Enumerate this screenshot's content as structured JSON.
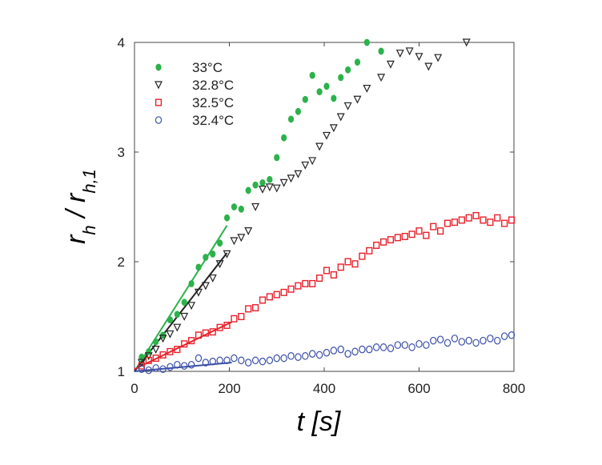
{
  "chart_data": {
    "type": "scatter",
    "xlabel": "t [s]",
    "ylabel": "r_h / r_h,1",
    "xlim": [
      0,
      800
    ],
    "ylim": [
      1,
      4
    ],
    "xticks": [
      0,
      200,
      400,
      600,
      800
    ],
    "yticks": [
      1,
      2,
      3,
      4
    ],
    "xtick_labels": [
      "0",
      "200",
      "400",
      "600",
      "800"
    ],
    "ytick_labels": [
      "1",
      "2",
      "3",
      "4"
    ],
    "legend_position": "top-left",
    "series": [
      {
        "name": "33°C",
        "marker": "filled-circle",
        "color": "#2bb24a",
        "x": [
          15,
          30,
          45,
          60,
          75,
          90,
          105,
          120,
          135,
          150,
          165,
          180,
          195,
          210,
          225,
          240,
          255,
          270,
          285,
          300,
          315,
          330,
          345,
          360,
          375,
          390,
          405,
          420,
          435,
          450,
          470,
          490,
          520
        ],
        "y": [
          1.13,
          1.18,
          1.27,
          1.33,
          1.47,
          1.52,
          1.63,
          1.8,
          1.95,
          2.04,
          2.07,
          2.17,
          2.4,
          2.5,
          2.48,
          2.65,
          2.7,
          2.72,
          2.75,
          2.95,
          3.13,
          3.3,
          3.37,
          3.48,
          3.7,
          3.55,
          3.6,
          3.49,
          3.68,
          3.75,
          3.82,
          4.0,
          3.92
        ],
        "fit_line": {
          "x": [
            0,
            195
          ],
          "y": [
            1.0,
            2.33
          ]
        }
      },
      {
        "name": "32.8°C",
        "marker": "open-triangle-down",
        "color": "#222222",
        "x": [
          15,
          30,
          45,
          60,
          75,
          90,
          105,
          120,
          135,
          150,
          165,
          180,
          195,
          210,
          225,
          240,
          255,
          270,
          285,
          300,
          315,
          330,
          345,
          360,
          375,
          390,
          405,
          420,
          435,
          450,
          470,
          490,
          520,
          540,
          560,
          580,
          600,
          620,
          640,
          700
        ],
        "y": [
          1.08,
          1.14,
          1.2,
          1.3,
          1.34,
          1.4,
          1.5,
          1.6,
          1.72,
          1.78,
          1.85,
          1.98,
          2.07,
          2.19,
          2.22,
          2.28,
          2.5,
          2.66,
          2.68,
          2.67,
          2.72,
          2.76,
          2.8,
          2.88,
          2.92,
          3.05,
          3.15,
          3.22,
          3.32,
          3.42,
          3.48,
          3.58,
          3.68,
          3.8,
          3.9,
          3.92,
          3.87,
          3.78,
          3.86,
          4.0
        ],
        "fit_line": {
          "x": [
            0,
            195
          ],
          "y": [
            1.0,
            2.08
          ]
        }
      },
      {
        "name": "32.5°C",
        "marker": "open-square",
        "color": "#e8202a",
        "x": [
          15,
          30,
          45,
          60,
          75,
          90,
          105,
          120,
          135,
          150,
          165,
          180,
          195,
          210,
          225,
          240,
          255,
          270,
          285,
          300,
          315,
          330,
          345,
          360,
          375,
          390,
          405,
          420,
          435,
          450,
          465,
          480,
          495,
          510,
          525,
          540,
          555,
          570,
          585,
          600,
          615,
          630,
          645,
          660,
          675,
          690,
          705,
          720,
          735,
          750,
          765,
          780,
          795
        ],
        "y": [
          1.05,
          1.1,
          1.12,
          1.15,
          1.18,
          1.2,
          1.25,
          1.28,
          1.33,
          1.35,
          1.36,
          1.4,
          1.42,
          1.48,
          1.5,
          1.57,
          1.58,
          1.65,
          1.68,
          1.7,
          1.72,
          1.75,
          1.78,
          1.8,
          1.8,
          1.85,
          1.92,
          1.88,
          1.95,
          2.0,
          1.98,
          2.05,
          2.1,
          2.15,
          2.18,
          2.2,
          2.22,
          2.23,
          2.25,
          2.28,
          2.24,
          2.32,
          2.28,
          2.35,
          2.36,
          2.38,
          2.4,
          2.42,
          2.38,
          2.36,
          2.4,
          2.35,
          2.38
        ],
        "fit_line": {
          "x": [
            0,
            205
          ],
          "y": [
            1.02,
            1.45
          ]
        }
      },
      {
        "name": "32.4°C",
        "marker": "open-circle",
        "color": "#3a4fa8",
        "x": [
          15,
          30,
          45,
          60,
          75,
          90,
          105,
          120,
          135,
          150,
          165,
          180,
          195,
          210,
          225,
          240,
          255,
          270,
          285,
          300,
          315,
          330,
          345,
          360,
          375,
          390,
          405,
          420,
          435,
          450,
          465,
          480,
          495,
          510,
          525,
          540,
          555,
          570,
          585,
          600,
          615,
          630,
          645,
          660,
          675,
          690,
          705,
          720,
          735,
          750,
          765,
          780,
          795
        ],
        "y": [
          1.02,
          1.01,
          1.03,
          1.02,
          1.04,
          1.06,
          1.05,
          1.06,
          1.12,
          1.08,
          1.09,
          1.1,
          1.1,
          1.12,
          1.1,
          1.08,
          1.1,
          1.09,
          1.1,
          1.12,
          1.12,
          1.14,
          1.13,
          1.14,
          1.16,
          1.15,
          1.17,
          1.19,
          1.2,
          1.16,
          1.18,
          1.2,
          1.2,
          1.22,
          1.22,
          1.21,
          1.24,
          1.24,
          1.22,
          1.25,
          1.24,
          1.28,
          1.29,
          1.26,
          1.3,
          1.27,
          1.28,
          1.26,
          1.28,
          1.3,
          1.28,
          1.32,
          1.33
        ],
        "fit_line": {
          "x": [
            0,
            205
          ],
          "y": [
            1.0,
            1.08
          ]
        }
      }
    ]
  }
}
